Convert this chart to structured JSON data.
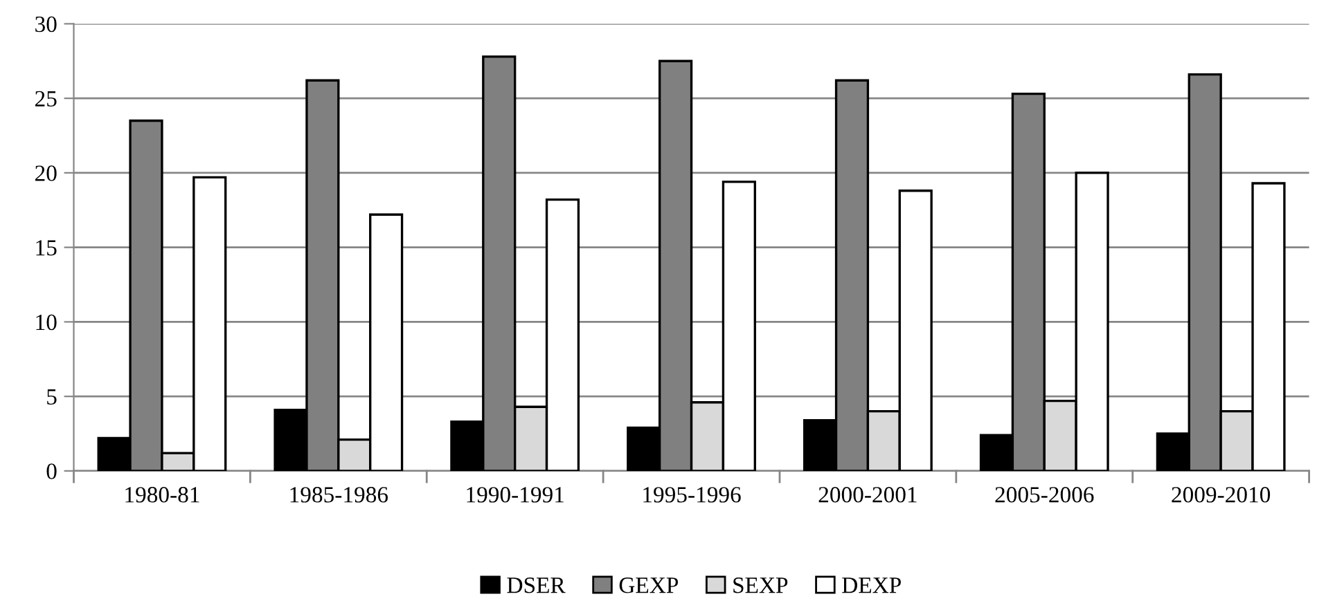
{
  "chart_data": {
    "type": "bar",
    "categories": [
      "1980-81",
      "1985-1986",
      "1990-1991",
      "1995-1996",
      "2000-2001",
      "2005-2006",
      "2009-2010"
    ],
    "series": [
      {
        "name": "DSER",
        "color": "#000000",
        "values": [
          2.2,
          4.1,
          3.3,
          2.9,
          3.4,
          2.4,
          2.5
        ]
      },
      {
        "name": "GEXP",
        "color": "#808080",
        "values": [
          23.5,
          26.2,
          27.8,
          27.5,
          26.2,
          25.3,
          26.6
        ]
      },
      {
        "name": "SEXP",
        "color": "#d9d9d9",
        "values": [
          1.2,
          2.1,
          4.3,
          4.6,
          4.0,
          4.7,
          4.0
        ]
      },
      {
        "name": "DEXP",
        "color": "#ffffff",
        "values": [
          19.7,
          17.2,
          18.2,
          19.4,
          18.8,
          20.0,
          19.3
        ]
      }
    ],
    "ylim": [
      0,
      30
    ],
    "yticks": [
      0,
      5,
      10,
      15,
      20,
      25,
      30
    ],
    "grid": "y",
    "legend": "bottom"
  }
}
